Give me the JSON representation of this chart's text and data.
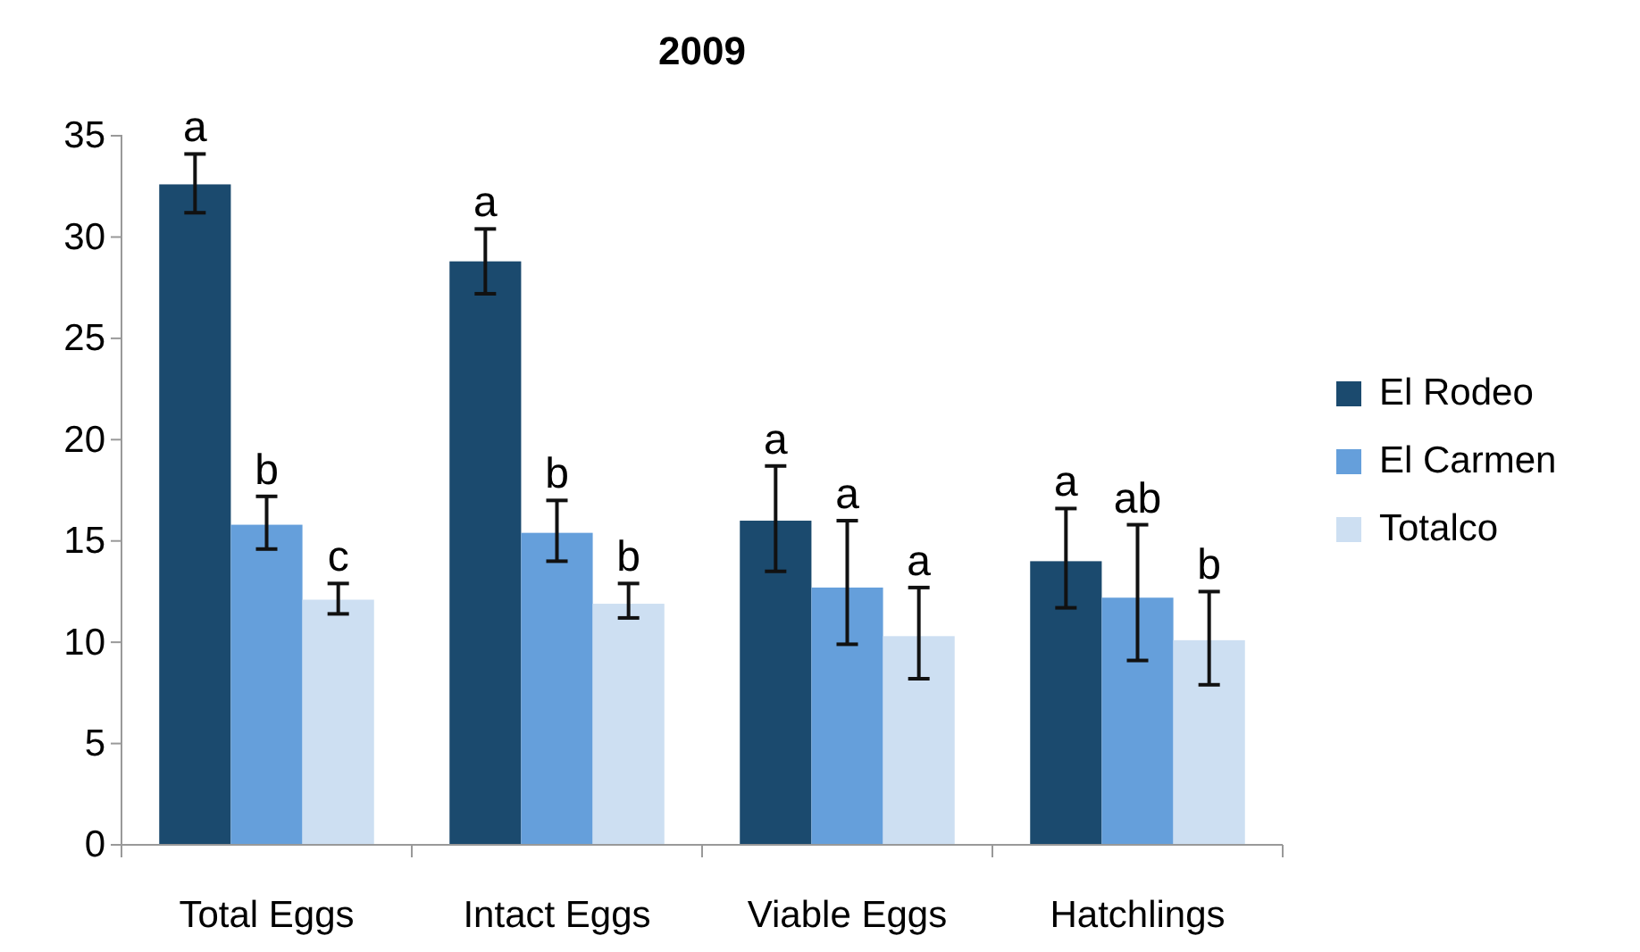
{
  "chart_data": {
    "type": "bar",
    "title": "2009",
    "categories": [
      "Total Eggs",
      "Intact Eggs",
      "Viable Eggs",
      "Hatchlings"
    ],
    "series": [
      {
        "name": "El Rodeo",
        "color": "#1b4a6e",
        "values": [
          32.6,
          28.8,
          16.0,
          14.0
        ],
        "errors": [
          [
            31.2,
            34.1
          ],
          [
            27.2,
            30.4
          ],
          [
            13.5,
            18.7
          ],
          [
            11.7,
            16.6
          ]
        ],
        "value_labels": [
          "a",
          "a",
          "a",
          "a"
        ]
      },
      {
        "name": "El Carmen",
        "color": "#659fdb",
        "values": [
          15.8,
          15.4,
          12.7,
          12.2
        ],
        "errors": [
          [
            14.6,
            17.2
          ],
          [
            14.0,
            17.0
          ],
          [
            9.9,
            16.0
          ],
          [
            9.1,
            15.8
          ]
        ],
        "value_labels": [
          "b",
          "b",
          "a",
          "ab"
        ]
      },
      {
        "name": "Totalco",
        "color": "#cddff2",
        "values": [
          12.1,
          11.9,
          10.3,
          10.1
        ],
        "errors": [
          [
            11.4,
            12.9
          ],
          [
            11.2,
            12.9
          ],
          [
            8.2,
            12.7
          ],
          [
            7.9,
            12.5
          ]
        ],
        "value_labels": [
          "c",
          "b",
          "a",
          "b"
        ]
      }
    ],
    "ylim": [
      0,
      35
    ],
    "yticks": [
      0,
      5,
      10,
      15,
      20,
      25,
      30,
      35
    ],
    "grid": false,
    "legend": "right"
  }
}
